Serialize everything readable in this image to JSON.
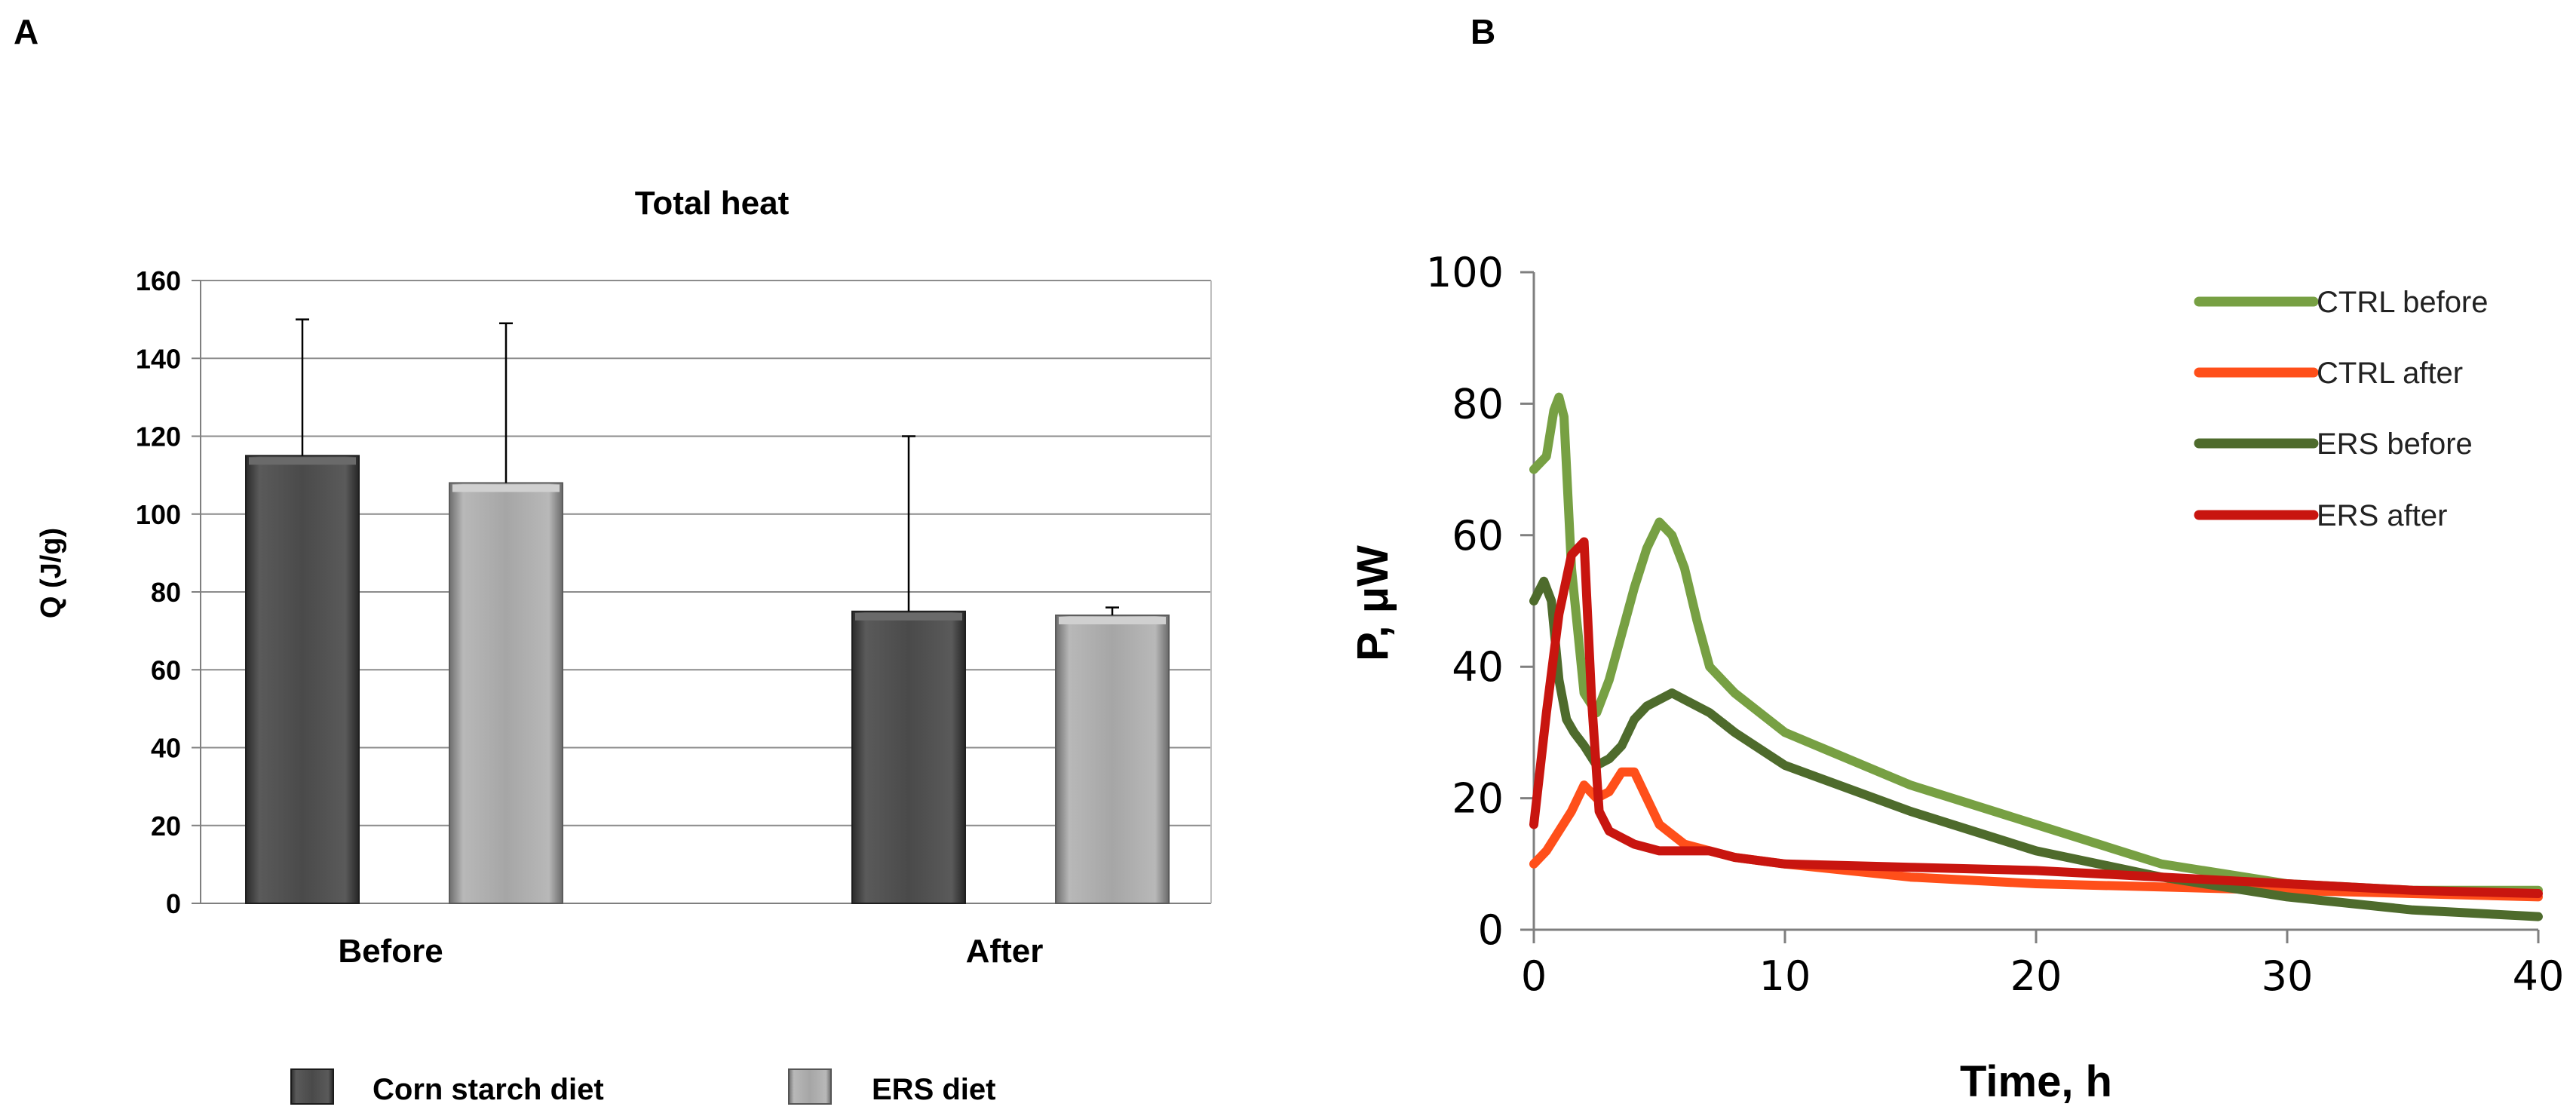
{
  "panels": {
    "left_label": "A",
    "right_label": "B"
  },
  "chart_data": [
    {
      "type": "bar",
      "title": "Total heat",
      "ylabel": "Q (J/g)",
      "xlabel": "",
      "ylim": [
        0,
        160
      ],
      "yticks": [
        "0",
        "20",
        "40",
        "60",
        "80",
        "100",
        "120",
        "140",
        "160"
      ],
      "categories": [
        "Before",
        "After"
      ],
      "series": [
        {
          "name": "Corn starch diet",
          "color": "#4d4d4d",
          "values": [
            115,
            75
          ],
          "error_upper": [
            150,
            120
          ]
        },
        {
          "name": "ERS diet",
          "color": "#a6a6a6",
          "values": [
            108,
            74
          ],
          "error_upper": [
            149,
            76
          ]
        }
      ],
      "grid": true,
      "legend_position": "bottom"
    },
    {
      "type": "line",
      "title": "",
      "xlabel": "Time, h",
      "ylabel": "P, μW",
      "xlim": [
        0,
        40
      ],
      "ylim": [
        0,
        100
      ],
      "xticks": [
        "0",
        "10",
        "20",
        "30",
        "40"
      ],
      "yticks": [
        "0",
        "20",
        "40",
        "60",
        "80",
        "100"
      ],
      "legend_position": "top-right",
      "series": [
        {
          "name": "CTRL before",
          "color": "#77a043",
          "x": [
            0,
            0.5,
            0.8,
            1.0,
            1.2,
            1.5,
            2.0,
            2.5,
            3.0,
            3.5,
            4.0,
            4.5,
            5.0,
            5.5,
            6.0,
            6.5,
            7.0,
            8.0,
            10.0,
            15.0,
            20.0,
            25.0,
            30.0,
            35.0,
            40.0
          ],
          "y": [
            70,
            72,
            79,
            81,
            78,
            55,
            36,
            33,
            38,
            45,
            52,
            58,
            62,
            60,
            55,
            47,
            40,
            36,
            30,
            22,
            16,
            10,
            7,
            6,
            6
          ]
        },
        {
          "name": "CTRL after",
          "color": "#ff4f1a",
          "x": [
            0,
            0.5,
            1.0,
            1.5,
            2.0,
            2.5,
            3.0,
            3.5,
            4.0,
            4.5,
            5.0,
            6.0,
            7.0,
            8.0,
            10.0,
            15.0,
            20.0,
            25.0,
            30.0,
            35.0,
            40.0
          ],
          "y": [
            10,
            12,
            15,
            18,
            22,
            20,
            21,
            24,
            24,
            20,
            16,
            13,
            12,
            11,
            10,
            8,
            7,
            6.5,
            6,
            5.5,
            5
          ]
        },
        {
          "name": "ERS before",
          "color": "#4e6b2c",
          "x": [
            0,
            0.4,
            0.7,
            1.0,
            1.3,
            1.6,
            2.0,
            2.5,
            3.0,
            3.5,
            4.0,
            4.5,
            5.0,
            5.5,
            6.0,
            7.0,
            8.0,
            10.0,
            15.0,
            20.0,
            25.0,
            30.0,
            35.0,
            40.0
          ],
          "y": [
            50,
            53,
            50,
            38,
            32,
            30,
            28,
            25,
            26,
            28,
            32,
            34,
            35,
            36,
            35,
            33,
            30,
            25,
            18,
            12,
            8,
            5,
            3,
            2
          ]
        },
        {
          "name": "ERS after",
          "color": "#c8150f",
          "x": [
            0,
            0.5,
            1.0,
            1.5,
            2.0,
            2.3,
            2.6,
            3.0,
            4.0,
            5.0,
            6.0,
            7.0,
            8.0,
            10.0,
            15.0,
            20.0,
            25.0,
            30.0,
            35.0,
            40.0
          ],
          "y": [
            16,
            33,
            48,
            57,
            59,
            35,
            18,
            15,
            13,
            12,
            12,
            12,
            11,
            10,
            9.5,
            9,
            8,
            7,
            6,
            5.5
          ]
        }
      ]
    }
  ]
}
